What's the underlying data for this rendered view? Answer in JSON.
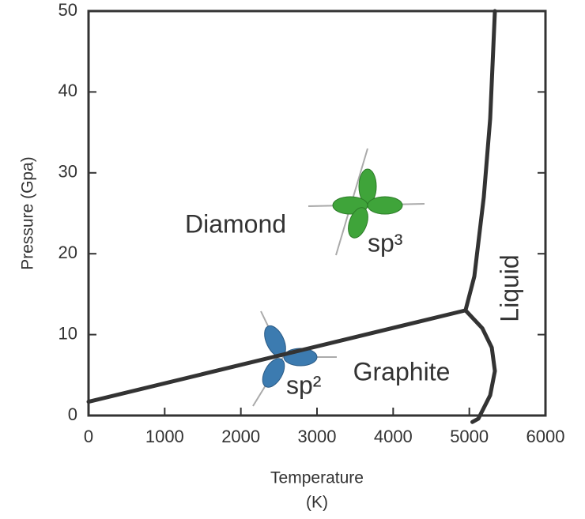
{
  "chart_data": {
    "type": "line",
    "x_label": [
      "Temperature",
      "(K)"
    ],
    "y_label": "Pressure (Gpa)",
    "annotations": [
      "Diamond",
      "Graphite",
      "Liquid",
      "sp³",
      "sp²"
    ],
    "xlim": [
      0,
      6000
    ],
    "xticks": [
      0,
      1000,
      2000,
      3000,
      4000,
      5000,
      6000
    ],
    "ylim": [
      0,
      50
    ],
    "yticks": [
      0,
      10,
      20,
      30,
      40,
      50
    ],
    "series": [
      {
        "color": "#333333",
        "x": [
          0,
          4950
        ],
        "values": [
          1.7,
          13
        ]
      },
      {
        "color": "#333333",
        "x": [
          4950,
          5066,
          5190,
          5274,
          5336
        ],
        "values": [
          13,
          17.2,
          27,
          36.7,
          50
        ]
      },
      {
        "color": "#333333",
        "x": [
          4950,
          5170,
          5295,
          5336,
          5274,
          5118,
          5040
        ],
        "values": [
          13,
          10.8,
          8.4,
          5.5,
          2.5,
          -0.4,
          -0.8
        ]
      }
    ]
  }
}
